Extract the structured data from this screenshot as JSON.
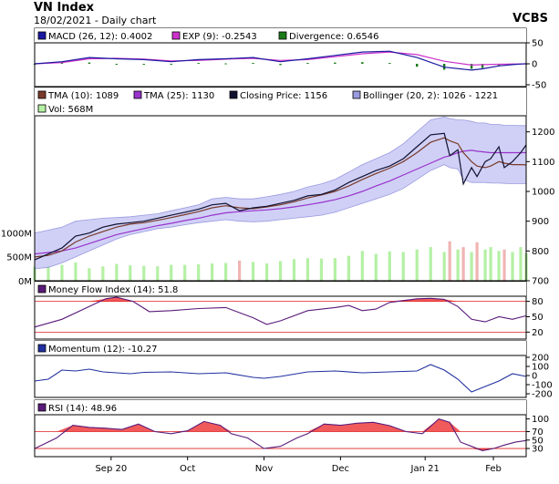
{
  "header": {
    "title": "VN Index",
    "subtitle": "18/02/2021 - Daily chart",
    "source": "VCBS"
  },
  "colors": {
    "macd": "#1a1aa0",
    "exp": "#cc33cc",
    "divergence": "#1a7a1a",
    "tma10": "#7a3a2a",
    "tma25": "#9933cc",
    "closing": "#101030",
    "bollinger_fill": "#c8c8f4",
    "bollinger_line": "#9a9ae0",
    "vol_up": "#b4f0a4",
    "vol_down": "#f0b4b4",
    "mfi": "#5a1a7a",
    "momentum": "#2030a0",
    "rsi": "#5a1a7a",
    "band_fill": "#f04848",
    "ref_line": "#e02020"
  },
  "chart_data": [
    {
      "type": "line",
      "panel": "macd",
      "legend": [
        {
          "label": "MACD (26, 12): 0.4002",
          "color": "#1a1aa0"
        },
        {
          "label": "EXP (9): -0.2543",
          "color": "#cc33cc"
        },
        {
          "label": "Divergence: 0.6546",
          "color": "#1a7a1a"
        }
      ],
      "ylim": [
        -50,
        50
      ],
      "yticks": [
        -50,
        0,
        50
      ],
      "series": [
        {
          "name": "MACD",
          "x": [
            0,
            10,
            20,
            30,
            40,
            50,
            60,
            70,
            80,
            90,
            100,
            110,
            120,
            130,
            140,
            150,
            160,
            164,
            170,
            175,
            180
          ],
          "values": [
            0,
            5,
            15,
            12,
            10,
            5,
            10,
            12,
            15,
            5,
            12,
            20,
            28,
            30,
            15,
            -8,
            -15,
            -12,
            -5,
            -2,
            0.4
          ]
        },
        {
          "name": "EXP",
          "x": [
            0,
            10,
            20,
            30,
            40,
            50,
            60,
            70,
            80,
            90,
            100,
            110,
            120,
            130,
            140,
            150,
            160,
            164,
            170,
            175,
            180
          ],
          "values": [
            0,
            3,
            12,
            13,
            11,
            7,
            8,
            11,
            13,
            8,
            10,
            17,
            24,
            28,
            22,
            6,
            -3,
            -2,
            -1,
            -0.5,
            -0.25
          ]
        },
        {
          "name": "Divergence",
          "x": [
            0,
            10,
            20,
            30,
            40,
            50,
            60,
            70,
            80,
            90,
            100,
            110,
            120,
            130,
            140,
            150,
            160,
            164,
            170,
            175,
            180
          ],
          "values": [
            0,
            2,
            3,
            -1,
            -1,
            -2,
            2,
            1,
            2,
            -3,
            2,
            3,
            4,
            2,
            -7,
            -14,
            -12,
            -10,
            -4,
            -1.5,
            0.65
          ]
        }
      ]
    },
    {
      "type": "line",
      "panel": "price",
      "legend": [
        {
          "label": "TMA (10): 1089",
          "color": "#7a3a2a"
        },
        {
          "label": "TMA (25): 1130",
          "color": "#9933cc"
        },
        {
          "label": "Closing Price: 1156",
          "color": "#101030"
        },
        {
          "label": "Bollinger (20, 2): 1026 - 1221",
          "color": "#9a9ae0"
        },
        {
          "label": "Vol: 568M",
          "color": "#b4f0a4"
        }
      ],
      "ylim": [
        700,
        1300
      ],
      "yticks": [
        700,
        800,
        900,
        1000,
        1100,
        1200
      ],
      "vol_ticks": [
        {
          "label": "0M",
          "v": 0
        },
        {
          "label": "500M",
          "v": 500
        },
        {
          "label": "1000M",
          "v": 1000
        }
      ],
      "x_labels": [
        {
          "label": "Sep 20",
          "x": 28
        },
        {
          "label": "Oct",
          "x": 56
        },
        {
          "label": "Nov",
          "x": 84
        },
        {
          "label": "Dec",
          "x": 112
        },
        {
          "label": "Jan 21",
          "x": 143
        },
        {
          "label": "Feb",
          "x": 168
        }
      ],
      "x": [
        0,
        5,
        10,
        15,
        20,
        25,
        30,
        35,
        40,
        45,
        50,
        55,
        60,
        65,
        70,
        75,
        80,
        85,
        90,
        95,
        100,
        105,
        110,
        115,
        120,
        125,
        130,
        135,
        140,
        145,
        150,
        152,
        155,
        157,
        160,
        162,
        165,
        167,
        170,
        172,
        175,
        178,
        180
      ],
      "closing": [
        770,
        790,
        810,
        850,
        860,
        880,
        890,
        895,
        900,
        910,
        920,
        930,
        940,
        955,
        960,
        935,
        945,
        950,
        960,
        970,
        985,
        990,
        1005,
        1030,
        1050,
        1070,
        1085,
        1110,
        1150,
        1190,
        1195,
        1120,
        1140,
        1025,
        1080,
        1050,
        1100,
        1110,
        1150,
        1080,
        1100,
        1130,
        1156
      ],
      "tma10": [
        780,
        785,
        800,
        830,
        850,
        865,
        880,
        890,
        895,
        903,
        912,
        922,
        932,
        945,
        952,
        945,
        942,
        948,
        955,
        965,
        978,
        988,
        1000,
        1018,
        1040,
        1060,
        1078,
        1100,
        1130,
        1165,
        1180,
        1170,
        1160,
        1130,
        1100,
        1085,
        1080,
        1085,
        1100,
        1095,
        1090,
        1090,
        1089
      ],
      "tma25": [
        790,
        795,
        800,
        810,
        825,
        840,
        855,
        865,
        875,
        885,
        893,
        902,
        910,
        920,
        928,
        932,
        935,
        938,
        942,
        948,
        955,
        963,
        972,
        985,
        1000,
        1018,
        1035,
        1055,
        1075,
        1095,
        1115,
        1120,
        1130,
        1135,
        1138,
        1135,
        1132,
        1130,
        1130,
        1130,
        1130,
        1130,
        1130
      ],
      "boll_upper": [
        860,
        870,
        880,
        900,
        905,
        910,
        912,
        915,
        920,
        925,
        935,
        945,
        955,
        975,
        980,
        975,
        975,
        982,
        990,
        1000,
        1015,
        1025,
        1040,
        1065,
        1090,
        1110,
        1130,
        1160,
        1200,
        1240,
        1250,
        1245,
        1240,
        1240,
        1235,
        1230,
        1230,
        1225,
        1225,
        1222,
        1222,
        1221,
        1221
      ],
      "boll_lower": [
        740,
        745,
        760,
        780,
        800,
        820,
        840,
        855,
        865,
        875,
        880,
        888,
        895,
        900,
        905,
        900,
        898,
        900,
        905,
        910,
        915,
        920,
        930,
        945,
        960,
        975,
        990,
        1010,
        1040,
        1070,
        1090,
        1080,
        1075,
        1040,
        1030,
        1030,
        1030,
        1028,
        1028,
        1027,
        1026,
        1026,
        1026
      ],
      "volume": [
        300,
        320,
        330,
        380,
        260,
        300,
        350,
        320,
        310,
        300,
        330,
        330,
        340,
        360,
        370,
        420,
        390,
        360,
        410,
        450,
        470,
        460,
        470,
        520,
        620,
        560,
        610,
        600,
        650,
        700,
        600,
        820,
        650,
        700,
        600,
        800,
        650,
        700,
        620,
        650,
        600,
        700,
        568
      ]
    },
    {
      "type": "line",
      "panel": "mfi",
      "legend": [
        {
          "label": "Money Flow Index (14): 51.8",
          "color": "#5a1a7a"
        }
      ],
      "ylim": [
        10,
        90
      ],
      "yticks": [
        20,
        50,
        80
      ],
      "ref_lines": [
        20,
        80
      ],
      "x": [
        0,
        10,
        20,
        26,
        30,
        36,
        42,
        50,
        60,
        70,
        80,
        85,
        90,
        100,
        110,
        115,
        120,
        125,
        130,
        140,
        145,
        150,
        155,
        160,
        165,
        170,
        175,
        180
      ],
      "values": [
        30,
        45,
        70,
        85,
        88,
        80,
        60,
        62,
        66,
        68,
        48,
        35,
        42,
        62,
        68,
        72,
        62,
        65,
        78,
        85,
        86,
        84,
        70,
        45,
        40,
        50,
        45,
        52
      ]
    },
    {
      "type": "line",
      "panel": "momentum",
      "legend": [
        {
          "label": "Momentum (12): -10.27",
          "color": "#2030a0"
        }
      ],
      "ylim": [
        -220,
        220
      ],
      "yticks": [
        -200,
        -100,
        0,
        100,
        200
      ],
      "x": [
        0,
        5,
        10,
        15,
        20,
        25,
        30,
        35,
        40,
        50,
        60,
        70,
        80,
        84,
        90,
        100,
        110,
        120,
        130,
        140,
        145,
        150,
        155,
        160,
        165,
        170,
        175,
        180
      ],
      "values": [
        -60,
        -40,
        60,
        50,
        70,
        40,
        30,
        20,
        35,
        40,
        20,
        30,
        -20,
        -30,
        -10,
        40,
        50,
        30,
        40,
        50,
        120,
        60,
        -40,
        -180,
        -120,
        -60,
        20,
        -10
      ]
    },
    {
      "type": "line",
      "panel": "rsi",
      "legend": [
        {
          "label": "RSI (14): 48.96",
          "color": "#5a1a7a"
        }
      ],
      "ylim": [
        15,
        110
      ],
      "yticks": [
        30,
        50,
        70,
        100
      ],
      "ref_lines": [
        30,
        70
      ],
      "x": [
        0,
        8,
        14,
        20,
        26,
        32,
        38,
        44,
        50,
        56,
        62,
        68,
        72,
        78,
        84,
        90,
        96,
        100,
        106,
        112,
        118,
        124,
        130,
        136,
        142,
        148,
        152,
        156,
        160,
        164,
        168,
        172,
        176,
        180
      ],
      "values": [
        30,
        55,
        85,
        80,
        78,
        75,
        88,
        70,
        65,
        72,
        94,
        85,
        65,
        55,
        30,
        35,
        55,
        65,
        88,
        85,
        90,
        92,
        84,
        70,
        65,
        100,
        92,
        45,
        35,
        25,
        30,
        38,
        45,
        49
      ]
    }
  ]
}
